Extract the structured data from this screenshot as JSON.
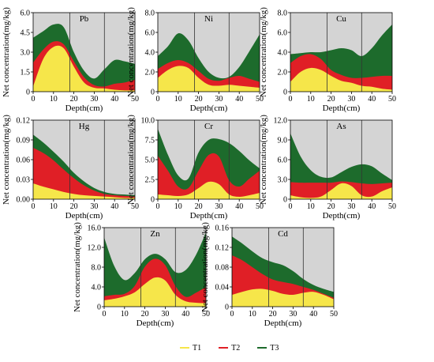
{
  "colors": {
    "background": "#d4d4d4",
    "T1": "#f6e64a",
    "T2": "#e01f26",
    "T3": "#1d6b2c",
    "divider": "#333333"
  },
  "legend": [
    {
      "name": "T1",
      "color": "#f6e64a"
    },
    {
      "name": "T2",
      "color": "#e01f26"
    },
    {
      "name": "T3",
      "color": "#1d6b2c"
    }
  ],
  "chart_data": [
    {
      "id": "pb",
      "type": "area",
      "title": "Pb",
      "xlabel": "Depth(cm)",
      "ylabel": "Net concentration(mg/kg)",
      "xlim": [
        0,
        50
      ],
      "ylim": [
        0,
        6
      ],
      "xticks": [
        "0",
        "10",
        "20",
        "30",
        "40",
        "50"
      ],
      "yticks": [
        "0",
        "1.5",
        "3.0",
        "4.5",
        "6.0"
      ],
      "dividers": [
        18,
        35
      ],
      "x": [
        0,
        5,
        10,
        15,
        20,
        25,
        30,
        35,
        40,
        45,
        50
      ],
      "series": [
        {
          "name": "T1",
          "values": [
            0.4,
            2.5,
            3.4,
            3.3,
            1.9,
            0.7,
            0.3,
            0.25,
            0.15,
            0.1,
            0.1
          ]
        },
        {
          "name": "T2",
          "values": [
            2.2,
            3.2,
            3.8,
            3.6,
            2.3,
            1.1,
            0.5,
            0.4,
            0.6,
            0.7,
            0.9
          ]
        },
        {
          "name": "T3",
          "values": [
            4.1,
            4.6,
            5.1,
            4.9,
            3.0,
            1.6,
            1.0,
            1.7,
            2.4,
            2.3,
            2.1
          ]
        }
      ]
    },
    {
      "id": "ni",
      "type": "area",
      "title": "Ni",
      "xlabel": "Depth(cm)",
      "ylabel": "Net concentration(mg/kg)",
      "xlim": [
        0,
        50
      ],
      "ylim": [
        0,
        8
      ],
      "xticks": [
        "0",
        "10",
        "20",
        "30",
        "40",
        "50"
      ],
      "yticks": [
        "0",
        "2.0",
        "4.0",
        "6.0",
        "8.0"
      ],
      "dividers": [
        18,
        35
      ],
      "x": [
        0,
        5,
        10,
        15,
        20,
        25,
        30,
        35,
        40,
        45,
        50
      ],
      "series": [
        {
          "name": "T1",
          "values": [
            1.4,
            2.2,
            2.6,
            2.4,
            1.4,
            0.7,
            0.6,
            0.7,
            0.6,
            0.5,
            0.4
          ]
        },
        {
          "name": "T2",
          "values": [
            2.3,
            2.9,
            3.2,
            2.9,
            2.1,
            1.3,
            1.1,
            1.4,
            1.6,
            1.3,
            1.0
          ]
        },
        {
          "name": "T3",
          "values": [
            3.6,
            4.6,
            5.9,
            5.2,
            3.4,
            2.0,
            1.4,
            1.5,
            2.5,
            4.1,
            5.8
          ]
        }
      ]
    },
    {
      "id": "cu",
      "type": "area",
      "title": "Cu",
      "xlabel": "Depth(cm)",
      "ylabel": "Net concentration(mg/kg)",
      "xlim": [
        0,
        50
      ],
      "ylim": [
        0,
        8
      ],
      "xticks": [
        "0",
        "10",
        "20",
        "30",
        "40",
        "50"
      ],
      "yticks": [
        "0",
        "2.0",
        "4.0",
        "6.0",
        "8.0"
      ],
      "dividers": [
        18,
        35
      ],
      "x": [
        0,
        5,
        10,
        15,
        20,
        25,
        30,
        35,
        40,
        45,
        50
      ],
      "series": [
        {
          "name": "T1",
          "values": [
            1.0,
            2.0,
            2.4,
            2.2,
            1.6,
            1.1,
            0.9,
            0.6,
            0.5,
            0.3,
            0.2
          ]
        },
        {
          "name": "T2",
          "values": [
            2.9,
            3.6,
            3.8,
            3.3,
            2.2,
            1.7,
            1.4,
            1.4,
            1.5,
            1.6,
            1.6
          ]
        },
        {
          "name": "T3",
          "values": [
            3.8,
            3.9,
            4.0,
            4.0,
            4.2,
            4.4,
            4.2,
            3.6,
            4.4,
            5.7,
            6.8
          ]
        }
      ]
    },
    {
      "id": "hg",
      "type": "area",
      "title": "Hg",
      "xlabel": "Depth(cm)",
      "ylabel": "Net concentration(mg/kg)",
      "xlim": [
        0,
        50
      ],
      "ylim": [
        0,
        0.12
      ],
      "xticks": [
        "0",
        "10",
        "20",
        "30",
        "40",
        "50"
      ],
      "yticks": [
        "0.00",
        "0.03",
        "0.06",
        "0.09",
        "0.12"
      ],
      "dividers": [
        18,
        35
      ],
      "x": [
        0,
        5,
        10,
        15,
        20,
        25,
        30,
        35,
        40,
        45,
        50
      ],
      "series": [
        {
          "name": "T1",
          "values": [
            0.024,
            0.019,
            0.015,
            0.011,
            0.008,
            0.006,
            0.005,
            0.004,
            0.003,
            0.002,
            0.002
          ]
        },
        {
          "name": "T2",
          "values": [
            0.078,
            0.07,
            0.059,
            0.045,
            0.032,
            0.021,
            0.013,
            0.008,
            0.006,
            0.005,
            0.004
          ]
        },
        {
          "name": "T3",
          "values": [
            0.098,
            0.086,
            0.072,
            0.057,
            0.04,
            0.027,
            0.017,
            0.011,
            0.008,
            0.007,
            0.006
          ]
        }
      ]
    },
    {
      "id": "cr",
      "type": "area",
      "title": "Cr",
      "xlabel": "Depth(cm)",
      "ylabel": "Net concentration(mg/kg)",
      "xlim": [
        0,
        50
      ],
      "ylim": [
        0,
        10
      ],
      "xticks": [
        "0",
        "10",
        "20",
        "30",
        "40",
        "50"
      ],
      "yticks": [
        "0",
        "2.5",
        "5.0",
        "7.5",
        "10.0"
      ],
      "dividers": [
        18,
        35
      ],
      "x": [
        0,
        5,
        10,
        15,
        20,
        25,
        30,
        35,
        40,
        45,
        50
      ],
      "series": [
        {
          "name": "T1",
          "values": [
            0.6,
            0.5,
            0.4,
            0.6,
            1.4,
            2.2,
            1.9,
            0.6,
            0.3,
            0.5,
            0.8
          ]
        },
        {
          "name": "T2",
          "values": [
            5.5,
            3.6,
            1.6,
            1.4,
            3.6,
            5.6,
            5.4,
            2.4,
            1.6,
            2.6,
            3.6
          ]
        },
        {
          "name": "T3",
          "values": [
            8.9,
            5.6,
            3.0,
            2.6,
            5.9,
            7.5,
            7.6,
            7.1,
            6.1,
            4.9,
            3.9
          ]
        }
      ]
    },
    {
      "id": "as",
      "type": "area",
      "title": "As",
      "xlabel": "Depth(cm)",
      "ylabel": "Net concentration(mg/kg)",
      "xlim": [
        0,
        50
      ],
      "ylim": [
        0,
        12
      ],
      "xticks": [
        "0",
        "10",
        "20",
        "30",
        "40",
        "50"
      ],
      "yticks": [
        "0",
        "3.0",
        "6.0",
        "9.0",
        "12.0"
      ],
      "dividers": [
        18,
        35
      ],
      "x": [
        0,
        5,
        10,
        15,
        20,
        25,
        30,
        35,
        40,
        45,
        50
      ],
      "series": [
        {
          "name": "T1",
          "values": [
            0.6,
            0.3,
            0.2,
            0.4,
            1.4,
            2.4,
            2.0,
            0.6,
            0.4,
            1.2,
            1.8
          ]
        },
        {
          "name": "T2",
          "values": [
            2.6,
            2.5,
            2.5,
            2.5,
            2.5,
            2.7,
            2.6,
            2.4,
            2.3,
            2.4,
            2.5
          ]
        },
        {
          "name": "T3",
          "values": [
            10.0,
            6.5,
            4.4,
            3.4,
            3.3,
            4.1,
            4.9,
            5.3,
            5.0,
            3.9,
            2.9
          ]
        }
      ]
    },
    {
      "id": "zn",
      "type": "area",
      "title": "Zn",
      "xlabel": "Depth(cm)",
      "ylabel": "Net concentration(mg/kg)",
      "xlim": [
        0,
        50
      ],
      "ylim": [
        0,
        16
      ],
      "xticks": [
        "0",
        "10",
        "20",
        "30",
        "40",
        "50"
      ],
      "yticks": [
        "0",
        "4.0",
        "8.0",
        "12.0",
        "16.0"
      ],
      "dividers": [
        18,
        35
      ],
      "x": [
        0,
        5,
        10,
        15,
        20,
        25,
        30,
        35,
        40,
        45,
        50
      ],
      "series": [
        {
          "name": "T1",
          "values": [
            1.3,
            1.6,
            2.1,
            2.9,
            4.6,
            5.9,
            5.3,
            2.4,
            1.1,
            0.8,
            0.7
          ]
        },
        {
          "name": "T2",
          "values": [
            2.1,
            2.4,
            2.6,
            4.2,
            8.1,
            9.7,
            8.4,
            4.2,
            2.0,
            2.8,
            4.0
          ]
        },
        {
          "name": "T3",
          "values": [
            14.0,
            8.2,
            5.4,
            6.8,
            9.6,
            10.7,
            9.6,
            7.0,
            7.4,
            10.4,
            15.0
          ]
        }
      ]
    },
    {
      "id": "cd",
      "type": "area",
      "title": "Cd",
      "xlabel": "Depth(cm)",
      "ylabel": "Net concentration(mg/kg)",
      "xlim": [
        0,
        50
      ],
      "ylim": [
        0,
        0.16
      ],
      "xticks": [
        "0",
        "10",
        "20",
        "30",
        "40",
        "50"
      ],
      "yticks": [
        "0",
        "0.04",
        "0.08",
        "0.12",
        "0.16"
      ],
      "dividers": [
        18,
        35
      ],
      "x": [
        0,
        5,
        10,
        15,
        20,
        25,
        30,
        35,
        40,
        45,
        50
      ],
      "series": [
        {
          "name": "T1",
          "values": [
            0.024,
            0.03,
            0.035,
            0.036,
            0.032,
            0.026,
            0.024,
            0.028,
            0.03,
            0.024,
            0.015
          ]
        },
        {
          "name": "T2",
          "values": [
            0.104,
            0.094,
            0.08,
            0.066,
            0.055,
            0.05,
            0.046,
            0.04,
            0.034,
            0.026,
            0.018
          ]
        },
        {
          "name": "T3",
          "values": [
            0.142,
            0.128,
            0.112,
            0.098,
            0.09,
            0.084,
            0.072,
            0.056,
            0.044,
            0.036,
            0.03
          ]
        }
      ]
    }
  ]
}
